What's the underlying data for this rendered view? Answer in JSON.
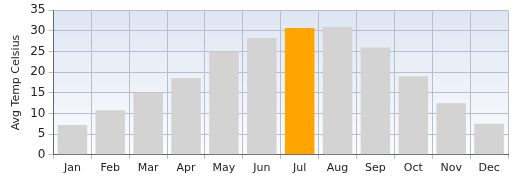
{
  "chart_data": {
    "type": "bar",
    "y_label": "Avg Temp Celsius",
    "categories": [
      "Jan",
      "Feb",
      "Mar",
      "Apr",
      "May",
      "Jun",
      "Jul",
      "Aug",
      "Sep",
      "Oct",
      "Nov",
      "Dec"
    ],
    "values": [
      7.2,
      10.8,
      15,
      18.5,
      25,
      28.3,
      30.7,
      31,
      26,
      19,
      12.5,
      7.5
    ],
    "colors": [
      "#d3d3d3",
      "#d3d3d3",
      "#d3d3d3",
      "#d3d3d3",
      "#d3d3d3",
      "#d3d3d3",
      "#ffa500",
      "#d3d3d3",
      "#d3d3d3",
      "#d3d3d3",
      "#d3d3d3",
      "#d3d3d3"
    ],
    "ylim": [
      0,
      35
    ],
    "yticks": [
      0,
      5,
      10,
      15,
      20,
      25,
      30,
      35
    ],
    "grid": true
  }
}
